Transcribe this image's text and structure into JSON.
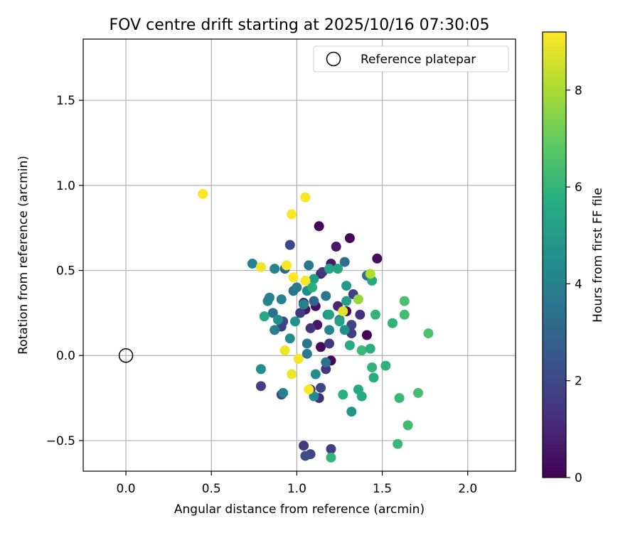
{
  "chart_data": {
    "type": "scatter",
    "title": "FOV centre drift starting at 2025/10/16 07:30:05",
    "xlabel": "Angular distance from reference (arcmin)",
    "ylabel": "Rotation from reference (arcmin)",
    "xlim": [
      -0.25,
      2.28
    ],
    "ylim": [
      -0.68,
      1.86
    ],
    "xticks": [
      0.0,
      0.5,
      1.0,
      1.5,
      2.0
    ],
    "xtick_labels": [
      "0.0",
      "0.5",
      "1.0",
      "1.5",
      "2.0"
    ],
    "yticks": [
      -0.5,
      0.0,
      0.5,
      1.0,
      1.5
    ],
    "ytick_labels": [
      "−0.5",
      "0.0",
      "0.5",
      "1.0",
      "1.5"
    ],
    "grid": true,
    "legend": {
      "position": "top-right",
      "entries": [
        "Reference platepar"
      ]
    },
    "reference_point": {
      "x": 0.0,
      "y": 0.0,
      "label": "Reference platepar"
    },
    "colorbar": {
      "label": "Hours from first FF file",
      "range": [
        0,
        9.2
      ],
      "ticks": [
        0,
        2,
        4,
        6,
        8
      ],
      "tick_labels": [
        "0",
        "2",
        "4",
        "6",
        "8"
      ],
      "colormap": "viridis"
    },
    "points": [
      {
        "x": 1.13,
        "y": 0.76,
        "h": 0.1
      },
      {
        "x": 1.31,
        "y": 0.69,
        "h": 0.2
      },
      {
        "x": 1.23,
        "y": 0.64,
        "h": 0.6
      },
      {
        "x": 1.47,
        "y": 0.57,
        "h": 0.3
      },
      {
        "x": 1.2,
        "y": 0.54,
        "h": 0.7
      },
      {
        "x": 1.14,
        "y": 0.48,
        "h": 0.8
      },
      {
        "x": 1.04,
        "y": 0.31,
        "h": 1.0
      },
      {
        "x": 1.11,
        "y": 0.29,
        "h": 0.4
      },
      {
        "x": 1.05,
        "y": 0.27,
        "h": 0.5
      },
      {
        "x": 1.29,
        "y": 0.26,
        "h": 0.2
      },
      {
        "x": 1.12,
        "y": 0.18,
        "h": 0.6
      },
      {
        "x": 1.41,
        "y": 0.12,
        "h": 0.1
      },
      {
        "x": 1.14,
        "y": 0.05,
        "h": 0.3
      },
      {
        "x": 1.2,
        "y": -0.03,
        "h": 0.2
      },
      {
        "x": 1.24,
        "y": 0.29,
        "h": 1.0
      },
      {
        "x": 0.96,
        "y": 0.65,
        "h": 2.0
      },
      {
        "x": 1.15,
        "y": 0.49,
        "h": 1.5
      },
      {
        "x": 1.33,
        "y": 0.36,
        "h": 1.8
      },
      {
        "x": 1.02,
        "y": 0.25,
        "h": 1.6
      },
      {
        "x": 0.92,
        "y": 0.2,
        "h": 2.0
      },
      {
        "x": 1.32,
        "y": 0.18,
        "h": 1.9
      },
      {
        "x": 1.08,
        "y": 0.16,
        "h": 1.4
      },
      {
        "x": 1.32,
        "y": 0.13,
        "h": 1.7
      },
      {
        "x": 1.19,
        "y": 0.07,
        "h": 1.5
      },
      {
        "x": 1.17,
        "y": -0.08,
        "h": 1.5
      },
      {
        "x": 0.79,
        "y": -0.18,
        "h": 1.8
      },
      {
        "x": 1.08,
        "y": -0.2,
        "h": 1.3
      },
      {
        "x": 1.14,
        "y": -0.19,
        "h": 1.9
      },
      {
        "x": 1.13,
        "y": -0.25,
        "h": 1.2
      },
      {
        "x": 0.91,
        "y": -0.23,
        "h": 1.9
      },
      {
        "x": 1.04,
        "y": -0.53,
        "h": 1.6
      },
      {
        "x": 1.2,
        "y": -0.55,
        "h": 1.7
      },
      {
        "x": 1.08,
        "y": -0.58,
        "h": 1.9
      },
      {
        "x": 1.05,
        "y": -0.59,
        "h": 2.2
      },
      {
        "x": 1.37,
        "y": 0.24,
        "h": 1.3
      },
      {
        "x": 0.91,
        "y": 0.17,
        "h": 1.8
      },
      {
        "x": 0.74,
        "y": 0.54,
        "h": 4.0
      },
      {
        "x": 1.07,
        "y": 0.53,
        "h": 3.7
      },
      {
        "x": 1.28,
        "y": 0.55,
        "h": 3.4
      },
      {
        "x": 0.87,
        "y": 0.51,
        "h": 4.2
      },
      {
        "x": 0.93,
        "y": 0.51,
        "h": 3.2
      },
      {
        "x": 1.41,
        "y": 0.47,
        "h": 3.5
      },
      {
        "x": 0.98,
        "y": 0.38,
        "h": 3.4
      },
      {
        "x": 1.0,
        "y": 0.4,
        "h": 3.7
      },
      {
        "x": 1.06,
        "y": 0.38,
        "h": 4.5
      },
      {
        "x": 1.17,
        "y": 0.35,
        "h": 3.6
      },
      {
        "x": 0.84,
        "y": 0.34,
        "h": 3.9
      },
      {
        "x": 0.83,
        "y": 0.32,
        "h": 4.1
      },
      {
        "x": 1.1,
        "y": 0.32,
        "h": 3.0
      },
      {
        "x": 1.04,
        "y": 0.3,
        "h": 4.0
      },
      {
        "x": 0.86,
        "y": 0.25,
        "h": 3.5
      },
      {
        "x": 0.91,
        "y": 0.33,
        "h": 4.0
      },
      {
        "x": 1.18,
        "y": 0.24,
        "h": 4.5
      },
      {
        "x": 0.89,
        "y": 0.21,
        "h": 4.6
      },
      {
        "x": 1.25,
        "y": 0.21,
        "h": 3.9
      },
      {
        "x": 0.99,
        "y": 0.2,
        "h": 4.7
      },
      {
        "x": 1.28,
        "y": 0.15,
        "h": 4.6
      },
      {
        "x": 0.87,
        "y": 0.15,
        "h": 3.9
      },
      {
        "x": 1.19,
        "y": 0.15,
        "h": 4.2
      },
      {
        "x": 0.96,
        "y": 0.1,
        "h": 4.6
      },
      {
        "x": 1.06,
        "y": 0.07,
        "h": 3.6
      },
      {
        "x": 1.06,
        "y": 0.01,
        "h": 3.8
      },
      {
        "x": 1.17,
        "y": -0.04,
        "h": 3.5
      },
      {
        "x": 0.79,
        "y": -0.08,
        "h": 4.6
      },
      {
        "x": 1.11,
        "y": -0.11,
        "h": 4.5
      },
      {
        "x": 0.92,
        "y": -0.22,
        "h": 4.0
      },
      {
        "x": 1.1,
        "y": -0.24,
        "h": 4.5
      },
      {
        "x": 1.32,
        "y": -0.33,
        "h": 4.8
      },
      {
        "x": 1.29,
        "y": 0.41,
        "h": 5.0
      },
      {
        "x": 1.1,
        "y": 0.45,
        "h": 5.2
      },
      {
        "x": 1.19,
        "y": 0.51,
        "h": 5.4
      },
      {
        "x": 1.24,
        "y": 0.51,
        "h": 5.4
      },
      {
        "x": 1.44,
        "y": 0.44,
        "h": 5.6
      },
      {
        "x": 1.09,
        "y": 0.4,
        "h": 5.8
      },
      {
        "x": 1.29,
        "y": 0.32,
        "h": 5.1
      },
      {
        "x": 1.46,
        "y": 0.24,
        "h": 6.0
      },
      {
        "x": 1.19,
        "y": 0.24,
        "h": 5.3
      },
      {
        "x": 0.81,
        "y": 0.23,
        "h": 5.5
      },
      {
        "x": 1.25,
        "y": 0.2,
        "h": 5.3
      },
      {
        "x": 1.56,
        "y": 0.19,
        "h": 6.0
      },
      {
        "x": 1.31,
        "y": 0.06,
        "h": 5.7
      },
      {
        "x": 1.38,
        "y": 0.03,
        "h": 6.2
      },
      {
        "x": 1.43,
        "y": 0.04,
        "h": 5.8
      },
      {
        "x": 1.44,
        "y": -0.07,
        "h": 6.0
      },
      {
        "x": 1.52,
        "y": -0.06,
        "h": 5.9
      },
      {
        "x": 1.45,
        "y": -0.13,
        "h": 5.7
      },
      {
        "x": 1.36,
        "y": -0.2,
        "h": 5.6
      },
      {
        "x": 1.27,
        "y": -0.23,
        "h": 5.8
      },
      {
        "x": 1.38,
        "y": -0.24,
        "h": 5.7
      },
      {
        "x": 1.6,
        "y": -0.25,
        "h": 6.2
      },
      {
        "x": 1.71,
        "y": -0.22,
        "h": 6.4
      },
      {
        "x": 1.65,
        "y": -0.41,
        "h": 6.3
      },
      {
        "x": 1.59,
        "y": -0.52,
        "h": 6.2
      },
      {
        "x": 1.2,
        "y": -0.6,
        "h": 6.1
      },
      {
        "x": 1.63,
        "y": 0.32,
        "h": 6.5
      },
      {
        "x": 1.63,
        "y": 0.24,
        "h": 6.4
      },
      {
        "x": 1.77,
        "y": 0.13,
        "h": 6.6
      },
      {
        "x": 1.36,
        "y": 0.33,
        "h": 7.7
      },
      {
        "x": 1.43,
        "y": 0.48,
        "h": 8.1
      },
      {
        "x": 1.27,
        "y": 0.26,
        "h": 8.8
      },
      {
        "x": 0.45,
        "y": 0.95,
        "h": 9.2
      },
      {
        "x": 1.05,
        "y": 0.93,
        "h": 9.1
      },
      {
        "x": 0.97,
        "y": 0.83,
        "h": 9.2
      },
      {
        "x": 0.79,
        "y": 0.52,
        "h": 9.0
      },
      {
        "x": 0.94,
        "y": 0.53,
        "h": 9.1
      },
      {
        "x": 0.98,
        "y": 0.46,
        "h": 9.2
      },
      {
        "x": 1.05,
        "y": 0.44,
        "h": 9.1
      },
      {
        "x": 0.93,
        "y": 0.03,
        "h": 9.0
      },
      {
        "x": 1.01,
        "y": -0.02,
        "h": 9.1
      },
      {
        "x": 0.97,
        "y": -0.11,
        "h": 9.0
      },
      {
        "x": 1.07,
        "y": -0.2,
        "h": 9.2
      }
    ]
  }
}
